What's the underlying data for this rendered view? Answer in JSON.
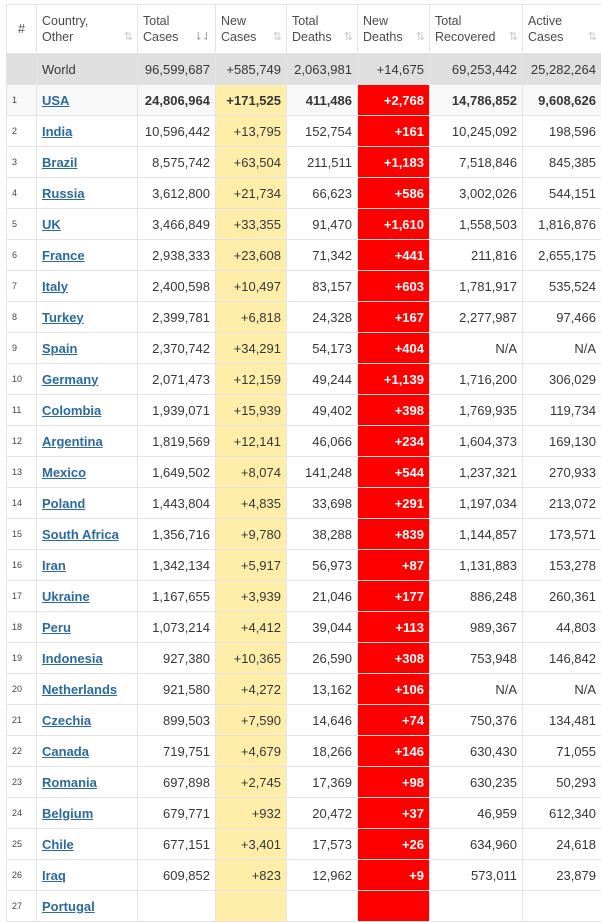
{
  "headers": {
    "rank": "#",
    "country": [
      "Country,",
      "Other"
    ],
    "total_cases": [
      "Total",
      "Cases"
    ],
    "new_cases": [
      "New",
      "Cases"
    ],
    "total_deaths": [
      "Total",
      "Deaths"
    ],
    "new_deaths": [
      "New",
      "Deaths"
    ],
    "total_recovered": [
      "Total",
      "Recovered"
    ],
    "active_cases": [
      "Active",
      "Cases"
    ]
  },
  "sort_icon": "⇅",
  "sort_icon_active": "⇂⇃",
  "world": {
    "label": "World",
    "total_cases": "96,599,687",
    "new_cases": "+585,749",
    "total_deaths": "2,063,981",
    "new_deaths": "+14,675",
    "total_recovered": "69,253,442",
    "active_cases": "25,282,264"
  },
  "rows": [
    {
      "rank": "1",
      "country": "USA",
      "total_cases": "24,806,964",
      "new_cases": "+171,525",
      "total_deaths": "411,486",
      "new_deaths": "+2,768",
      "total_recovered": "14,786,852",
      "active_cases": "9,608,626"
    },
    {
      "rank": "2",
      "country": "India",
      "total_cases": "10,596,442",
      "new_cases": "+13,795",
      "total_deaths": "152,754",
      "new_deaths": "+161",
      "total_recovered": "10,245,092",
      "active_cases": "198,596"
    },
    {
      "rank": "3",
      "country": "Brazil",
      "total_cases": "8,575,742",
      "new_cases": "+63,504",
      "total_deaths": "211,511",
      "new_deaths": "+1,183",
      "total_recovered": "7,518,846",
      "active_cases": "845,385"
    },
    {
      "rank": "4",
      "country": "Russia",
      "total_cases": "3,612,800",
      "new_cases": "+21,734",
      "total_deaths": "66,623",
      "new_deaths": "+586",
      "total_recovered": "3,002,026",
      "active_cases": "544,151"
    },
    {
      "rank": "5",
      "country": "UK",
      "total_cases": "3,466,849",
      "new_cases": "+33,355",
      "total_deaths": "91,470",
      "new_deaths": "+1,610",
      "total_recovered": "1,558,503",
      "active_cases": "1,816,876"
    },
    {
      "rank": "6",
      "country": "France",
      "total_cases": "2,938,333",
      "new_cases": "+23,608",
      "total_deaths": "71,342",
      "new_deaths": "+441",
      "total_recovered": "211,816",
      "active_cases": "2,655,175"
    },
    {
      "rank": "7",
      "country": "Italy",
      "total_cases": "2,400,598",
      "new_cases": "+10,497",
      "total_deaths": "83,157",
      "new_deaths": "+603",
      "total_recovered": "1,781,917",
      "active_cases": "535,524"
    },
    {
      "rank": "8",
      "country": "Turkey",
      "total_cases": "2,399,781",
      "new_cases": "+6,818",
      "total_deaths": "24,328",
      "new_deaths": "+167",
      "total_recovered": "2,277,987",
      "active_cases": "97,466"
    },
    {
      "rank": "9",
      "country": "Spain",
      "total_cases": "2,370,742",
      "new_cases": "+34,291",
      "total_deaths": "54,173",
      "new_deaths": "+404",
      "total_recovered": "N/A",
      "active_cases": "N/A"
    },
    {
      "rank": "10",
      "country": "Germany",
      "total_cases": "2,071,473",
      "new_cases": "+12,159",
      "total_deaths": "49,244",
      "new_deaths": "+1,139",
      "total_recovered": "1,716,200",
      "active_cases": "306,029"
    },
    {
      "rank": "11",
      "country": "Colombia",
      "total_cases": "1,939,071",
      "new_cases": "+15,939",
      "total_deaths": "49,402",
      "new_deaths": "+398",
      "total_recovered": "1,769,935",
      "active_cases": "119,734"
    },
    {
      "rank": "12",
      "country": "Argentina",
      "total_cases": "1,819,569",
      "new_cases": "+12,141",
      "total_deaths": "46,066",
      "new_deaths": "+234",
      "total_recovered": "1,604,373",
      "active_cases": "169,130"
    },
    {
      "rank": "13",
      "country": "Mexico",
      "total_cases": "1,649,502",
      "new_cases": "+8,074",
      "total_deaths": "141,248",
      "new_deaths": "+544",
      "total_recovered": "1,237,321",
      "active_cases": "270,933"
    },
    {
      "rank": "14",
      "country": "Poland",
      "total_cases": "1,443,804",
      "new_cases": "+4,835",
      "total_deaths": "33,698",
      "new_deaths": "+291",
      "total_recovered": "1,197,034",
      "active_cases": "213,072"
    },
    {
      "rank": "15",
      "country": "South Africa",
      "total_cases": "1,356,716",
      "new_cases": "+9,780",
      "total_deaths": "38,288",
      "new_deaths": "+839",
      "total_recovered": "1,144,857",
      "active_cases": "173,571"
    },
    {
      "rank": "16",
      "country": "Iran",
      "total_cases": "1,342,134",
      "new_cases": "+5,917",
      "total_deaths": "56,973",
      "new_deaths": "+87",
      "total_recovered": "1,131,883",
      "active_cases": "153,278"
    },
    {
      "rank": "17",
      "country": "Ukraine",
      "total_cases": "1,167,655",
      "new_cases": "+3,939",
      "total_deaths": "21,046",
      "new_deaths": "+177",
      "total_recovered": "886,248",
      "active_cases": "260,361"
    },
    {
      "rank": "18",
      "country": "Peru",
      "total_cases": "1,073,214",
      "new_cases": "+4,412",
      "total_deaths": "39,044",
      "new_deaths": "+113",
      "total_recovered": "989,367",
      "active_cases": "44,803"
    },
    {
      "rank": "19",
      "country": "Indonesia",
      "total_cases": "927,380",
      "new_cases": "+10,365",
      "total_deaths": "26,590",
      "new_deaths": "+308",
      "total_recovered": "753,948",
      "active_cases": "146,842"
    },
    {
      "rank": "20",
      "country": "Netherlands",
      "total_cases": "921,580",
      "new_cases": "+4,272",
      "total_deaths": "13,162",
      "new_deaths": "+106",
      "total_recovered": "N/A",
      "active_cases": "N/A"
    },
    {
      "rank": "21",
      "country": "Czechia",
      "total_cases": "899,503",
      "new_cases": "+7,590",
      "total_deaths": "14,646",
      "new_deaths": "+74",
      "total_recovered": "750,376",
      "active_cases": "134,481"
    },
    {
      "rank": "22",
      "country": "Canada",
      "total_cases": "719,751",
      "new_cases": "+4,679",
      "total_deaths": "18,266",
      "new_deaths": "+146",
      "total_recovered": "630,430",
      "active_cases": "71,055"
    },
    {
      "rank": "23",
      "country": "Romania",
      "total_cases": "697,898",
      "new_cases": "+2,745",
      "total_deaths": "17,369",
      "new_deaths": "+98",
      "total_recovered": "630,235",
      "active_cases": "50,293"
    },
    {
      "rank": "24",
      "country": "Belgium",
      "total_cases": "679,771",
      "new_cases": "+932",
      "total_deaths": "20,472",
      "new_deaths": "+37",
      "total_recovered": "46,959",
      "active_cases": "612,340"
    },
    {
      "rank": "25",
      "country": "Chile",
      "total_cases": "677,151",
      "new_cases": "+3,401",
      "total_deaths": "17,573",
      "new_deaths": "+26",
      "total_recovered": "634,960",
      "active_cases": "24,618"
    },
    {
      "rank": "26",
      "country": "Iraq",
      "total_cases": "609,852",
      "new_cases": "+823",
      "total_deaths": "12,962",
      "new_deaths": "+9",
      "total_recovered": "573,011",
      "active_cases": "23,879"
    },
    {
      "rank": "27",
      "country": "Portugal",
      "total_cases": "",
      "new_cases": "",
      "total_deaths": "",
      "new_deaths": "",
      "total_recovered": "",
      "active_cases": ""
    }
  ]
}
